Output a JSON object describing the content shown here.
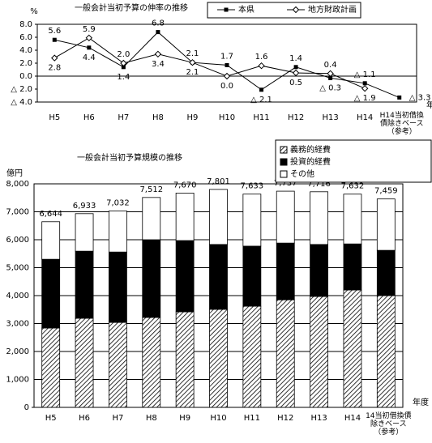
{
  "chart_data": [
    {
      "type": "line",
      "title": "一般会計当初予算の伸率の推移",
      "ylabel": "%",
      "xlabel": "年度",
      "categories": [
        "H5",
        "H6",
        "H7",
        "H8",
        "H9",
        "H10",
        "H11",
        "H12",
        "H13",
        "H14",
        "H14当初借換債除きベース（参考）"
      ],
      "series": [
        {
          "name": "本県",
          "color": "#000000",
          "marker": "square",
          "values": [
            5.6,
            4.4,
            1.4,
            6.8,
            2.1,
            1.7,
            -2.1,
            1.4,
            -0.3,
            -1.1,
            -3.3
          ],
          "value_labels": [
            "5.6",
            "4.4",
            "1.4",
            "6.8",
            "2.1",
            "1.7",
            "△ 2.1",
            "1.4",
            "△ 0.3",
            "△ 1.1",
            "△ 3.3"
          ]
        },
        {
          "name": "地方財政計画",
          "color": "#000000",
          "marker": "diamond",
          "values": [
            2.8,
            5.9,
            2.0,
            3.4,
            2.1,
            0.0,
            1.6,
            0.5,
            0.4,
            -1.9,
            null
          ],
          "value_labels": [
            "2.8",
            "5.9",
            "2.0",
            "3.4",
            "2.1",
            "0.0",
            "1.6",
            "0.5",
            "0.4",
            "△ 1.9",
            null
          ]
        }
      ],
      "ylim": [
        -4,
        8
      ],
      "yticks": [
        {
          "value": -4,
          "label": "△ 4.0"
        },
        {
          "value": -2,
          "label": "△ 2.0"
        },
        {
          "value": 0,
          "label": "0.0"
        },
        {
          "value": 2,
          "label": "2.0"
        },
        {
          "value": 4,
          "label": "4.0"
        },
        {
          "value": 6,
          "label": "6.0"
        },
        {
          "value": 8,
          "label": "8.0"
        }
      ],
      "legend": "top-right"
    },
    {
      "type": "stacked-bar",
      "title": "一般会計当初予算規模の推移",
      "ylabel": "億円",
      "xlabel": "年度",
      "categories": [
        "H5",
        "H6",
        "H7",
        "H8",
        "H9",
        "H10",
        "H11",
        "H12",
        "H13",
        "H14",
        "14当初借換債除きベース（参考）"
      ],
      "series": [
        {
          "name": "義務的経費",
          "color": "#000000",
          "pattern": "diagonal",
          "values": [
            2840,
            3190,
            3040,
            3220,
            3420,
            3510,
            3620,
            3850,
            3970,
            4200,
            4000
          ]
        },
        {
          "name": "投資的経費",
          "color": "#000000",
          "values": [
            2460,
            2400,
            2520,
            2780,
            2550,
            2320,
            2150,
            2030,
            1860,
            1650,
            1620
          ]
        },
        {
          "name": "その他",
          "color": "#ffffff",
          "values": [
            1344,
            1343,
            1472,
            1512,
            1700,
            1971,
            1863,
            1857,
            1886,
            1782,
            1839
          ]
        }
      ],
      "totals": [
        6644,
        6933,
        7032,
        7512,
        7670,
        7801,
        7633,
        7737,
        7716,
        7632,
        7459
      ],
      "total_labels": [
        "6,644",
        "6,933",
        "7,032",
        "7,512",
        "7,670",
        "7,801",
        "7,633",
        "7,737",
        "7,716",
        "7,632",
        "7,459"
      ],
      "ylim": [
        0,
        8000
      ],
      "yticks": [
        0,
        {
          "value": 1000,
          "label": "1,000"
        },
        {
          "value": 2000,
          "label": "2,000"
        },
        {
          "value": 3000,
          "label": "3,000"
        },
        {
          "value": 4000,
          "label": "4,000"
        },
        {
          "value": 5000,
          "label": "5,000"
        },
        {
          "value": 6000,
          "label": "6,000"
        },
        {
          "value": 7000,
          "label": "7,000"
        },
        {
          "value": 8000,
          "label": "8,000"
        }
      ],
      "grid": true,
      "legend": "top-right"
    }
  ]
}
